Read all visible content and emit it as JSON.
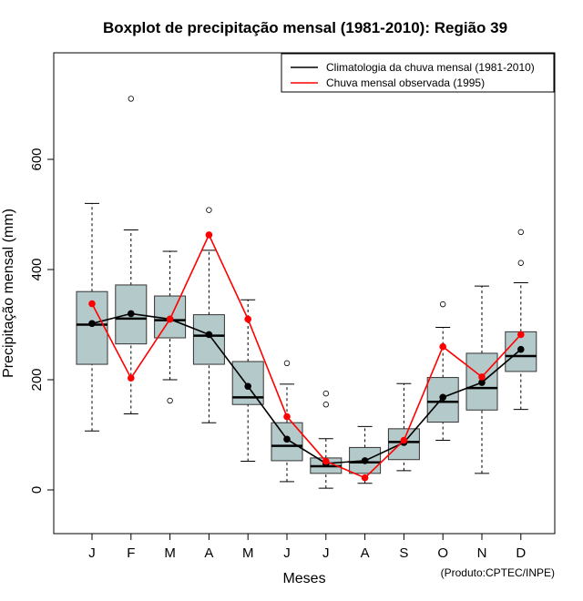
{
  "chart_data": {
    "type": "boxplot",
    "title": "Boxplot de precipitação mensal (1981-2010): Região 39",
    "xlabel": "Meses",
    "ylabel": "Precipitação mensal (mm)",
    "credit": "(Produto:CPTEC/INPE)",
    "ylim": [
      -80,
      790
    ],
    "yticks": [
      0,
      200,
      400,
      600
    ],
    "categories": [
      "J",
      "F",
      "M",
      "A",
      "M",
      "J",
      "J",
      "A",
      "S",
      "O",
      "N",
      "D"
    ],
    "boxes": [
      {
        "whisker_low": 107,
        "q1": 228,
        "median": 300,
        "q3": 360,
        "whisker_high": 520,
        "outliers": []
      },
      {
        "whisker_low": 138,
        "q1": 265,
        "median": 311,
        "q3": 372,
        "whisker_high": 472,
        "outliers": [
          710
        ]
      },
      {
        "whisker_low": 200,
        "q1": 276,
        "median": 308,
        "q3": 352,
        "whisker_high": 433,
        "outliers": [
          162
        ]
      },
      {
        "whisker_low": 122,
        "q1": 228,
        "median": 280,
        "q3": 318,
        "whisker_high": 435,
        "outliers": [
          508
        ]
      },
      {
        "whisker_low": 52,
        "q1": 155,
        "median": 168,
        "q3": 233,
        "whisker_high": 345,
        "outliers": []
      },
      {
        "whisker_low": 15,
        "q1": 53,
        "median": 80,
        "q3": 122,
        "whisker_high": 192,
        "outliers": [
          230
        ]
      },
      {
        "whisker_low": 3,
        "q1": 30,
        "median": 43,
        "q3": 58,
        "whisker_high": 93,
        "outliers": [
          175,
          155
        ]
      },
      {
        "whisker_low": 12,
        "q1": 30,
        "median": 50,
        "q3": 77,
        "whisker_high": 115,
        "outliers": []
      },
      {
        "whisker_low": 35,
        "q1": 55,
        "median": 87,
        "q3": 111,
        "whisker_high": 193,
        "outliers": []
      },
      {
        "whisker_low": 90,
        "q1": 123,
        "median": 160,
        "q3": 204,
        "whisker_high": 295,
        "outliers": [
          337
        ]
      },
      {
        "whisker_low": 30,
        "q1": 145,
        "median": 185,
        "q3": 248,
        "whisker_high": 370,
        "outliers": []
      },
      {
        "whisker_low": 146,
        "q1": 215,
        "median": 243,
        "q3": 287,
        "whisker_high": 376,
        "outliers": [
          468,
          412
        ]
      }
    ],
    "series": [
      {
        "name": "Climatologia da chuva mensal (1981-2010)",
        "color": "#000000",
        "values": [
          302,
          320,
          310,
          282,
          188,
          92,
          48,
          53,
          86,
          168,
          195,
          255
        ]
      },
      {
        "name": "Chuva mensal observada (1995)",
        "color": "#ff0000",
        "values": [
          338,
          203,
          310,
          463,
          310,
          133,
          52,
          22,
          90,
          260,
          205,
          282
        ]
      }
    ],
    "legend_position": "top-right",
    "box_color": "#b4c9c9"
  }
}
